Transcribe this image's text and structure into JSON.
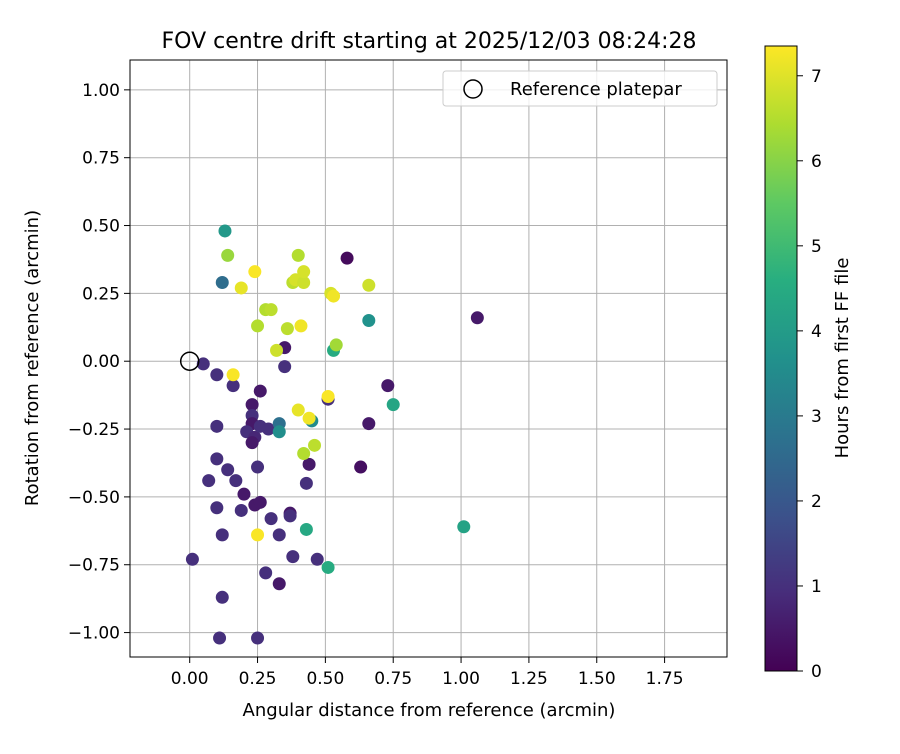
{
  "chart_data": {
    "type": "scatter",
    "title": "FOV centre drift starting at 2025/12/03 08:24:28",
    "xlabel": "Angular distance from reference (arcmin)",
    "ylabel": "Rotation from reference (arcmin)",
    "xlim": [
      -0.22,
      1.98
    ],
    "ylim": [
      -1.09,
      1.11
    ],
    "xticks": [
      "0.00",
      "0.25",
      "0.50",
      "0.75",
      "1.00",
      "1.25",
      "1.50",
      "1.75"
    ],
    "yticks": [
      "1.00",
      "0.75",
      "0.50",
      "0.25",
      "0.00",
      "−0.25",
      "−0.50",
      "−0.75",
      "−1.00"
    ],
    "grid": true,
    "legend": {
      "position": "top-right",
      "label": "Reference platepar"
    },
    "reference": {
      "x": 0.0,
      "y": 0.0
    },
    "colorbar": {
      "label": "Hours from first FF file",
      "range": [
        0,
        7.35
      ],
      "ticks": [
        "0",
        "1",
        "2",
        "3",
        "4",
        "5",
        "6",
        "7"
      ],
      "colormap": "viridis"
    },
    "points": [
      {
        "x": 0.05,
        "y": -0.01,
        "h": 1.0
      },
      {
        "x": 0.1,
        "y": -0.05,
        "h": 1.0
      },
      {
        "x": 0.16,
        "y": -0.09,
        "h": 1.0
      },
      {
        "x": 0.23,
        "y": -0.16,
        "h": 0.5
      },
      {
        "x": 0.23,
        "y": -0.2,
        "h": 1.0
      },
      {
        "x": 0.23,
        "y": -0.23,
        "h": 0.5
      },
      {
        "x": 0.21,
        "y": -0.26,
        "h": 1.0
      },
      {
        "x": 0.24,
        "y": -0.28,
        "h": 0.8
      },
      {
        "x": 0.23,
        "y": -0.3,
        "h": 0.5
      },
      {
        "x": 0.26,
        "y": -0.24,
        "h": 1.0
      },
      {
        "x": 0.29,
        "y": -0.25,
        "h": 1.0
      },
      {
        "x": 0.26,
        "y": -0.11,
        "h": 0.5
      },
      {
        "x": 0.1,
        "y": -0.24,
        "h": 1.0
      },
      {
        "x": 0.1,
        "y": -0.36,
        "h": 1.0
      },
      {
        "x": 0.14,
        "y": -0.4,
        "h": 1.0
      },
      {
        "x": 0.07,
        "y": -0.44,
        "h": 1.0
      },
      {
        "x": 0.17,
        "y": -0.44,
        "h": 1.0
      },
      {
        "x": 0.2,
        "y": -0.49,
        "h": 0.5
      },
      {
        "x": 0.1,
        "y": -0.54,
        "h": 1.0
      },
      {
        "x": 0.24,
        "y": -0.53,
        "h": 0.5
      },
      {
        "x": 0.26,
        "y": -0.52,
        "h": 0.5
      },
      {
        "x": 0.19,
        "y": -0.55,
        "h": 1.0
      },
      {
        "x": 0.12,
        "y": -0.64,
        "h": 1.0
      },
      {
        "x": 0.25,
        "y": -0.39,
        "h": 1.0
      },
      {
        "x": 0.01,
        "y": -0.73,
        "h": 1.0
      },
      {
        "x": 0.12,
        "y": -0.87,
        "h": 1.0
      },
      {
        "x": 0.11,
        "y": -1.02,
        "h": 1.0
      },
      {
        "x": 0.25,
        "y": -1.02,
        "h": 1.0
      },
      {
        "x": 0.28,
        "y": -0.78,
        "h": 1.0
      },
      {
        "x": 0.3,
        "y": -0.58,
        "h": 1.0
      },
      {
        "x": 0.33,
        "y": -0.64,
        "h": 1.0
      },
      {
        "x": 0.33,
        "y": -0.82,
        "h": 0.5
      },
      {
        "x": 0.37,
        "y": -0.56,
        "h": 0.5
      },
      {
        "x": 0.37,
        "y": -0.57,
        "h": 1.0
      },
      {
        "x": 0.38,
        "y": -0.72,
        "h": 1.0
      },
      {
        "x": 0.43,
        "y": -0.45,
        "h": 1.0
      },
      {
        "x": 0.44,
        "y": -0.38,
        "h": 0.5
      },
      {
        "x": 0.47,
        "y": -0.73,
        "h": 1.0
      },
      {
        "x": 0.35,
        "y": 0.05,
        "h": 0.5
      },
      {
        "x": 0.35,
        "y": -0.02,
        "h": 1.0
      },
      {
        "x": 0.58,
        "y": 0.38,
        "h": 0.2
      },
      {
        "x": 1.06,
        "y": 0.16,
        "h": 0.5
      },
      {
        "x": 0.73,
        "y": -0.09,
        "h": 0.5
      },
      {
        "x": 0.51,
        "y": -0.14,
        "h": 1.0
      },
      {
        "x": 0.66,
        "y": -0.23,
        "h": 0.5
      },
      {
        "x": 0.63,
        "y": -0.39,
        "h": 0.3
      },
      {
        "x": 0.13,
        "y": 0.48,
        "h": 3.9
      },
      {
        "x": 0.12,
        "y": 0.29,
        "h": 2.6
      },
      {
        "x": 0.33,
        "y": -0.23,
        "h": 2.7
      },
      {
        "x": 0.33,
        "y": -0.26,
        "h": 3.6
      },
      {
        "x": 0.45,
        "y": -0.22,
        "h": 3.5
      },
      {
        "x": 0.43,
        "y": -0.62,
        "h": 4.4
      },
      {
        "x": 0.51,
        "y": -0.76,
        "h": 4.5
      },
      {
        "x": 0.66,
        "y": 0.15,
        "h": 3.7
      },
      {
        "x": 0.53,
        "y": 0.04,
        "h": 4.5
      },
      {
        "x": 0.75,
        "y": -0.16,
        "h": 4.3
      },
      {
        "x": 1.01,
        "y": -0.61,
        "h": 4.2
      },
      {
        "x": 0.14,
        "y": 0.39,
        "h": 6.2
      },
      {
        "x": 0.19,
        "y": 0.27,
        "h": 7.1
      },
      {
        "x": 0.24,
        "y": 0.33,
        "h": 7.3
      },
      {
        "x": 0.25,
        "y": 0.13,
        "h": 6.5
      },
      {
        "x": 0.28,
        "y": 0.19,
        "h": 6.5
      },
      {
        "x": 0.3,
        "y": 0.19,
        "h": 6.6
      },
      {
        "x": 0.32,
        "y": 0.04,
        "h": 6.8
      },
      {
        "x": 0.36,
        "y": 0.12,
        "h": 6.6
      },
      {
        "x": 0.38,
        "y": 0.29,
        "h": 6.6
      },
      {
        "x": 0.39,
        "y": 0.3,
        "h": 6.9
      },
      {
        "x": 0.4,
        "y": 0.39,
        "h": 6.5
      },
      {
        "x": 0.42,
        "y": 0.29,
        "h": 6.8
      },
      {
        "x": 0.42,
        "y": 0.33,
        "h": 6.9
      },
      {
        "x": 0.41,
        "y": 0.13,
        "h": 7.2
      },
      {
        "x": 0.52,
        "y": 0.25,
        "h": 6.9
      },
      {
        "x": 0.53,
        "y": 0.24,
        "h": 7.2
      },
      {
        "x": 0.54,
        "y": 0.06,
        "h": 6.3
      },
      {
        "x": 0.66,
        "y": 0.28,
        "h": 6.8
      },
      {
        "x": 0.16,
        "y": -0.05,
        "h": 7.3
      },
      {
        "x": 0.4,
        "y": -0.18,
        "h": 7.1
      },
      {
        "x": 0.44,
        "y": -0.21,
        "h": 7.2
      },
      {
        "x": 0.46,
        "y": -0.31,
        "h": 6.6
      },
      {
        "x": 0.42,
        "y": -0.34,
        "h": 6.5
      },
      {
        "x": 0.51,
        "y": -0.13,
        "h": 7.3
      },
      {
        "x": 0.25,
        "y": -0.64,
        "h": 7.3
      }
    ]
  }
}
